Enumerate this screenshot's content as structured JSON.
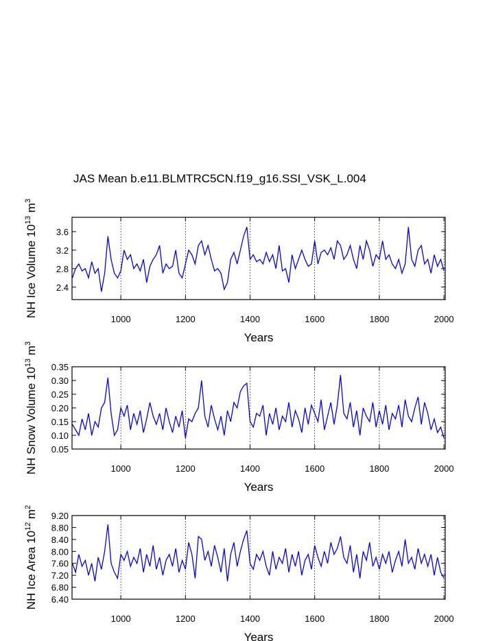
{
  "chart_data": [
    {
      "type": "line",
      "title": "JAS Mean b.e11.BLMTRC5CN.f19_g16.SSI_VSK_L.004",
      "ylabel": {
        "text": "NH Ice Volume 10",
        "exp": "13",
        "unit": " m",
        "unit_exp": "3"
      },
      "xlabel": "Years",
      "xlim": [
        849,
        2004
      ],
      "xticks": [
        1000,
        1200,
        1400,
        1600,
        1800,
        2000
      ],
      "ylim": [
        2.13,
        3.91
      ],
      "yticks": [
        2.4,
        2.8,
        3.2,
        3.6
      ],
      "grid": "x-dashed",
      "color": "#0000ff",
      "x": [
        850,
        860,
        870,
        880,
        890,
        900,
        910,
        920,
        930,
        940,
        950,
        960,
        970,
        980,
        990,
        1000,
        1010,
        1020,
        1030,
        1040,
        1050,
        1060,
        1070,
        1080,
        1090,
        1100,
        1110,
        1120,
        1130,
        1140,
        1150,
        1160,
        1170,
        1180,
        1190,
        1200,
        1210,
        1220,
        1230,
        1240,
        1250,
        1260,
        1270,
        1280,
        1290,
        1300,
        1310,
        1320,
        1330,
        1340,
        1350,
        1360,
        1370,
        1380,
        1390,
        1400,
        1410,
        1420,
        1430,
        1440,
        1450,
        1460,
        1470,
        1480,
        1490,
        1500,
        1510,
        1520,
        1530,
        1540,
        1550,
        1560,
        1570,
        1580,
        1590,
        1600,
        1610,
        1620,
        1630,
        1640,
        1650,
        1660,
        1670,
        1680,
        1690,
        1700,
        1710,
        1720,
        1730,
        1740,
        1750,
        1760,
        1770,
        1780,
        1790,
        1800,
        1810,
        1820,
        1830,
        1840,
        1850,
        1860,
        1870,
        1880,
        1890,
        1900,
        1910,
        1920,
        1930,
        1940,
        1950,
        1960,
        1970,
        1980,
        1990,
        2000
      ],
      "values": [
        2.6,
        2.8,
        2.9,
        2.75,
        2.8,
        2.6,
        2.95,
        2.7,
        2.8,
        2.3,
        2.7,
        3.5,
        3.0,
        2.7,
        2.6,
        2.75,
        3.2,
        3.0,
        3.1,
        2.8,
        2.9,
        2.75,
        3.0,
        2.5,
        2.85,
        3.0,
        3.1,
        3.3,
        2.7,
        2.9,
        2.8,
        2.85,
        3.2,
        2.7,
        2.6,
        2.9,
        3.2,
        3.1,
        2.9,
        3.3,
        3.4,
        3.1,
        3.3,
        3.0,
        2.75,
        2.8,
        2.7,
        2.35,
        2.5,
        3.0,
        3.15,
        2.9,
        3.2,
        3.5,
        3.7,
        3.0,
        3.1,
        2.95,
        3.0,
        2.9,
        3.15,
        2.95,
        3.1,
        2.8,
        3.3,
        2.75,
        2.8,
        2.5,
        3.1,
        2.8,
        3.0,
        3.2,
        3.0,
        2.85,
        2.9,
        3.4,
        2.9,
        3.15,
        3.2,
        3.1,
        3.25,
        3.0,
        3.4,
        3.3,
        3.0,
        3.1,
        3.3,
        3.0,
        2.8,
        3.3,
        3.0,
        3.4,
        3.2,
        2.85,
        3.1,
        3.0,
        3.4,
        3.0,
        3.1,
        2.9,
        2.8,
        3.0,
        2.7,
        2.9,
        3.7,
        3.0,
        2.85,
        3.2,
        3.3,
        2.9,
        3.0,
        2.7,
        3.1,
        2.85,
        3.0,
        2.75
      ]
    },
    {
      "type": "line",
      "ylabel": {
        "text": "NH Snow Volume 10",
        "exp": "13",
        "unit": " m",
        "unit_exp": "3"
      },
      "xlabel": "Years",
      "xlim": [
        849,
        2004
      ],
      "xticks": [
        1000,
        1200,
        1400,
        1600,
        1800,
        2000
      ],
      "ylim": [
        0.05,
        0.35
      ],
      "yticks": [
        0.05,
        {
          "value": 0.1,
          "label": "0.10"
        },
        0.15,
        {
          "value": 0.2,
          "label": "0.20"
        },
        0.25,
        {
          "value": 0.3,
          "label": "0.30"
        },
        0.35
      ],
      "grid": "x-dashed",
      "color": "#0000ff",
      "x": [
        850,
        860,
        870,
        880,
        890,
        900,
        910,
        920,
        930,
        940,
        950,
        960,
        970,
        980,
        990,
        1000,
        1010,
        1020,
        1030,
        1040,
        1050,
        1060,
        1070,
        1080,
        1090,
        1100,
        1110,
        1120,
        1130,
        1140,
        1150,
        1160,
        1170,
        1180,
        1190,
        1200,
        1210,
        1220,
        1230,
        1240,
        1250,
        1260,
        1270,
        1280,
        1290,
        1300,
        1310,
        1320,
        1330,
        1340,
        1350,
        1360,
        1370,
        1380,
        1390,
        1400,
        1410,
        1420,
        1430,
        1440,
        1450,
        1460,
        1470,
        1480,
        1490,
        1500,
        1510,
        1520,
        1530,
        1540,
        1550,
        1560,
        1570,
        1580,
        1590,
        1600,
        1610,
        1620,
        1630,
        1640,
        1650,
        1660,
        1670,
        1680,
        1690,
        1700,
        1710,
        1720,
        1730,
        1740,
        1750,
        1760,
        1770,
        1780,
        1790,
        1800,
        1810,
        1820,
        1830,
        1840,
        1850,
        1860,
        1870,
        1880,
        1890,
        1900,
        1910,
        1920,
        1930,
        1940,
        1950,
        1960,
        1970,
        1980,
        1990,
        2000
      ],
      "values": [
        0.14,
        0.12,
        0.1,
        0.16,
        0.12,
        0.18,
        0.1,
        0.15,
        0.13,
        0.2,
        0.22,
        0.31,
        0.18,
        0.1,
        0.12,
        0.2,
        0.17,
        0.21,
        0.12,
        0.18,
        0.14,
        0.19,
        0.11,
        0.16,
        0.22,
        0.17,
        0.14,
        0.18,
        0.12,
        0.2,
        0.15,
        0.11,
        0.17,
        0.13,
        0.19,
        0.09,
        0.16,
        0.15,
        0.18,
        0.2,
        0.3,
        0.17,
        0.13,
        0.21,
        0.16,
        0.12,
        0.17,
        0.1,
        0.19,
        0.15,
        0.22,
        0.2,
        0.26,
        0.28,
        0.29,
        0.15,
        0.13,
        0.18,
        0.17,
        0.21,
        0.1,
        0.18,
        0.14,
        0.2,
        0.12,
        0.17,
        0.15,
        0.22,
        0.13,
        0.19,
        0.16,
        0.11,
        0.2,
        0.14,
        0.21,
        0.18,
        0.15,
        0.23,
        0.12,
        0.17,
        0.22,
        0.14,
        0.21,
        0.32,
        0.18,
        0.16,
        0.22,
        0.13,
        0.19,
        0.1,
        0.2,
        0.17,
        0.15,
        0.22,
        0.13,
        0.19,
        0.14,
        0.21,
        0.12,
        0.18,
        0.16,
        0.21,
        0.13,
        0.23,
        0.17,
        0.15,
        0.2,
        0.24,
        0.14,
        0.22,
        0.18,
        0.12,
        0.16,
        0.11,
        0.13,
        0.09
      ]
    },
    {
      "type": "line",
      "ylabel": {
        "text": "NH Ice Area 10",
        "exp": "12",
        "unit": " m",
        "unit_exp": "2"
      },
      "xlabel": "Years",
      "xlim": [
        849,
        2004
      ],
      "xticks": [
        1000,
        1200,
        1400,
        1600,
        1800,
        2000
      ],
      "ylim": [
        6.4,
        9.2
      ],
      "yticks": [
        {
          "value": 6.4,
          "label": "6.40"
        },
        {
          "value": 6.8,
          "label": "6.80"
        },
        {
          "value": 7.2,
          "label": "7.20"
        },
        {
          "value": 7.6,
          "label": "7.60"
        },
        {
          "value": 8.0,
          "label": "8.00"
        },
        {
          "value": 8.4,
          "label": "8.40"
        },
        {
          "value": 8.8,
          "label": "8.80"
        },
        {
          "value": 9.2,
          "label": "9.20"
        }
      ],
      "grid": "x-dashed",
      "color": "#0000ff",
      "x": [
        850,
        860,
        870,
        880,
        890,
        900,
        910,
        920,
        930,
        940,
        950,
        960,
        970,
        980,
        990,
        1000,
        1010,
        1020,
        1030,
        1040,
        1050,
        1060,
        1070,
        1080,
        1090,
        1100,
        1110,
        1120,
        1130,
        1140,
        1150,
        1160,
        1170,
        1180,
        1190,
        1200,
        1210,
        1220,
        1230,
        1240,
        1250,
        1260,
        1270,
        1280,
        1290,
        1300,
        1310,
        1320,
        1330,
        1340,
        1350,
        1360,
        1370,
        1380,
        1390,
        1400,
        1410,
        1420,
        1430,
        1440,
        1450,
        1460,
        1470,
        1480,
        1490,
        1500,
        1510,
        1520,
        1530,
        1540,
        1550,
        1560,
        1570,
        1580,
        1590,
        1600,
        1610,
        1620,
        1630,
        1640,
        1650,
        1660,
        1670,
        1680,
        1690,
        1700,
        1710,
        1720,
        1730,
        1740,
        1750,
        1760,
        1770,
        1780,
        1790,
        1800,
        1810,
        1820,
        1830,
        1840,
        1850,
        1860,
        1870,
        1880,
        1890,
        1900,
        1910,
        1920,
        1930,
        1940,
        1950,
        1960,
        1970,
        1980,
        1990,
        2000
      ],
      "values": [
        7.6,
        7.3,
        7.9,
        7.5,
        7.7,
        7.2,
        7.6,
        7.0,
        7.8,
        7.4,
        8.0,
        8.9,
        7.6,
        7.3,
        7.1,
        7.9,
        7.7,
        8.0,
        7.5,
        7.8,
        7.6,
        8.1,
        7.3,
        7.9,
        7.5,
        8.2,
        7.4,
        7.8,
        7.2,
        7.7,
        7.9,
        7.5,
        8.1,
        7.3,
        7.7,
        7.4,
        8.3,
        7.9,
        7.1,
        8.5,
        8.4,
        7.7,
        8.0,
        7.5,
        8.2,
        7.8,
        7.3,
        8.1,
        7.0,
        7.9,
        8.3,
        7.5,
        8.0,
        8.4,
        8.7,
        7.6,
        7.4,
        7.9,
        7.7,
        8.0,
        7.5,
        7.2,
        8.0,
        7.4,
        7.8,
        7.6,
        8.1,
        7.3,
        7.9,
        7.5,
        8.0,
        7.2,
        7.7,
        7.9,
        7.4,
        8.2,
        7.8,
        7.5,
        8.0,
        7.6,
        8.3,
        7.9,
        8.1,
        8.5,
        7.8,
        7.6,
        8.2,
        7.3,
        7.9,
        7.1,
        8.0,
        7.7,
        8.3,
        7.5,
        7.8,
        7.4,
        7.9,
        7.6,
        8.0,
        7.3,
        7.7,
        8.0,
        7.5,
        8.4,
        7.6,
        7.8,
        7.4,
        8.1,
        7.6,
        7.9,
        7.5,
        7.9,
        7.2,
        7.8,
        7.3,
        7.1
      ]
    }
  ]
}
